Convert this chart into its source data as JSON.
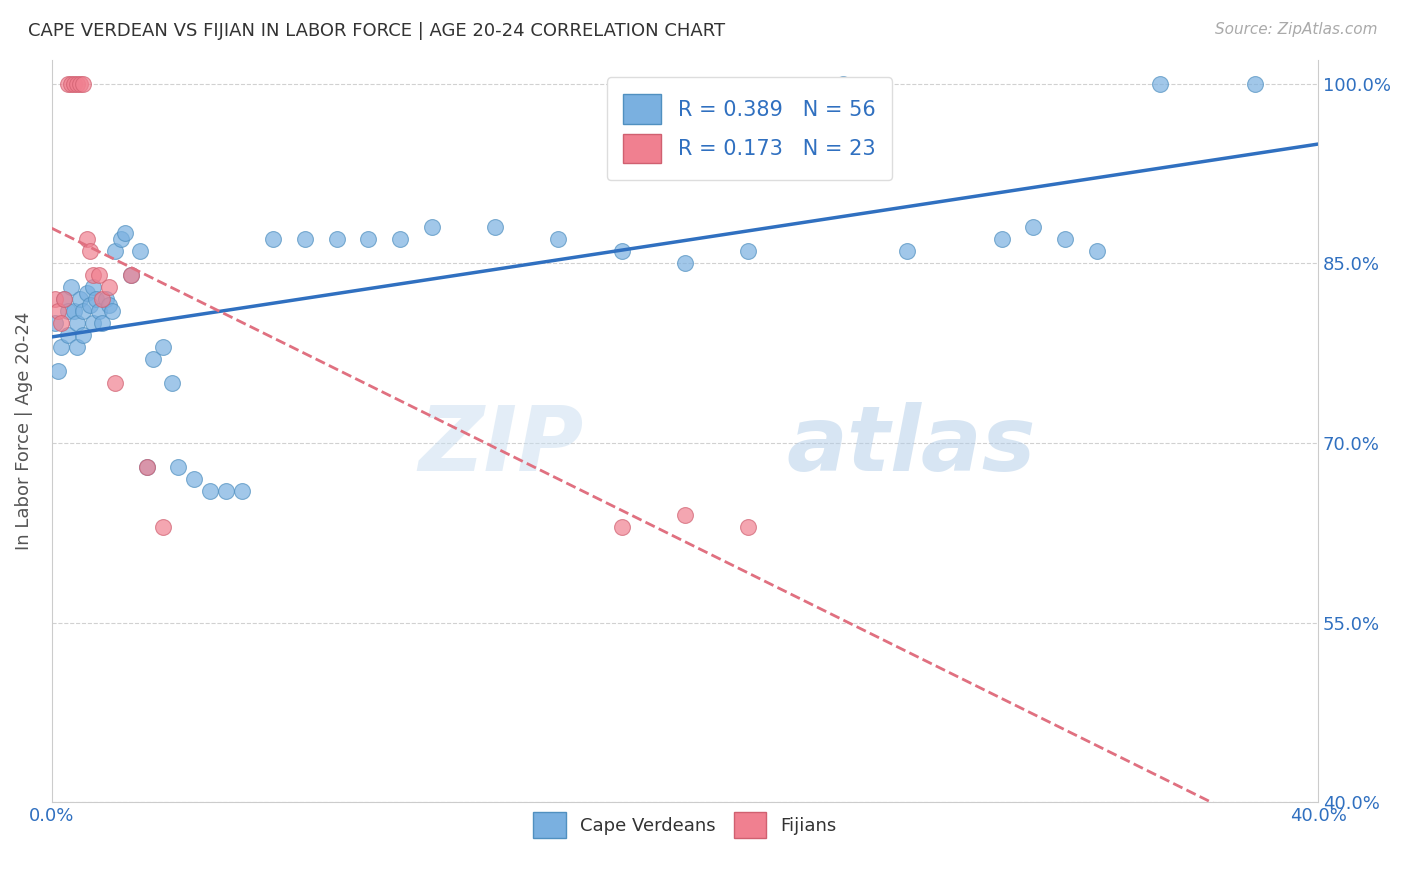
{
  "title": "CAPE VERDEAN VS FIJIAN IN LABOR FORCE | AGE 20-24 CORRELATION CHART",
  "source": "Source: ZipAtlas.com",
  "ylabel": "In Labor Force | Age 20-24",
  "xlim": [
    0.0,
    0.4
  ],
  "ylim": [
    0.4,
    1.02
  ],
  "yticks": [
    0.4,
    0.55,
    0.7,
    0.85,
    1.0
  ],
  "ytick_labels": [
    "40.0%",
    "55.0%",
    "70.0%",
    "85.0%",
    "100.0%"
  ],
  "xticks": [
    0.0,
    0.1,
    0.2,
    0.3,
    0.4
  ],
  "xtick_labels": [
    "0.0%",
    "",
    "",
    "",
    "40.0%"
  ],
  "watermark": "ZIPatlas",
  "cape_verdean_color": "#7ab0e0",
  "fijian_color": "#f08090",
  "trend_line_cv_color": "#3070c0",
  "trend_line_fj_color": "#e07080",
  "cape_verdeans_x": [
    0.001,
    0.002,
    0.003,
    0.004,
    0.005,
    0.005,
    0.006,
    0.007,
    0.008,
    0.008,
    0.009,
    0.01,
    0.01,
    0.011,
    0.012,
    0.013,
    0.013,
    0.014,
    0.015,
    0.016,
    0.017,
    0.018,
    0.019,
    0.02,
    0.022,
    0.023,
    0.025,
    0.028,
    0.03,
    0.032,
    0.035,
    0.038,
    0.04,
    0.045,
    0.05,
    0.055,
    0.06,
    0.07,
    0.08,
    0.09,
    0.1,
    0.11,
    0.12,
    0.14,
    0.16,
    0.18,
    0.2,
    0.22,
    0.25,
    0.27,
    0.3,
    0.31,
    0.32,
    0.33,
    0.35,
    0.38
  ],
  "cape_verdeans_y": [
    0.8,
    0.76,
    0.78,
    0.82,
    0.81,
    0.79,
    0.83,
    0.81,
    0.8,
    0.78,
    0.82,
    0.81,
    0.79,
    0.825,
    0.815,
    0.8,
    0.83,
    0.82,
    0.81,
    0.8,
    0.82,
    0.815,
    0.81,
    0.86,
    0.87,
    0.875,
    0.84,
    0.86,
    0.68,
    0.77,
    0.78,
    0.75,
    0.68,
    0.67,
    0.66,
    0.66,
    0.66,
    0.87,
    0.87,
    0.87,
    0.87,
    0.87,
    0.88,
    0.88,
    0.87,
    0.86,
    0.85,
    0.86,
    1.0,
    0.86,
    0.87,
    0.88,
    0.87,
    0.86,
    1.0,
    1.0
  ],
  "fijians_x": [
    0.001,
    0.002,
    0.003,
    0.004,
    0.005,
    0.006,
    0.007,
    0.008,
    0.009,
    0.01,
    0.011,
    0.012,
    0.013,
    0.015,
    0.016,
    0.018,
    0.02,
    0.025,
    0.03,
    0.035,
    0.18,
    0.2,
    0.22
  ],
  "fijians_y": [
    0.82,
    0.81,
    0.8,
    0.82,
    1.0,
    1.0,
    1.0,
    1.0,
    1.0,
    1.0,
    0.87,
    0.86,
    0.84,
    0.84,
    0.82,
    0.83,
    0.75,
    0.84,
    0.68,
    0.63,
    0.63,
    0.64,
    0.63
  ],
  "legend_cv_label": "R = 0.389   N = 56",
  "legend_fj_label": "R = 0.173   N = 23"
}
